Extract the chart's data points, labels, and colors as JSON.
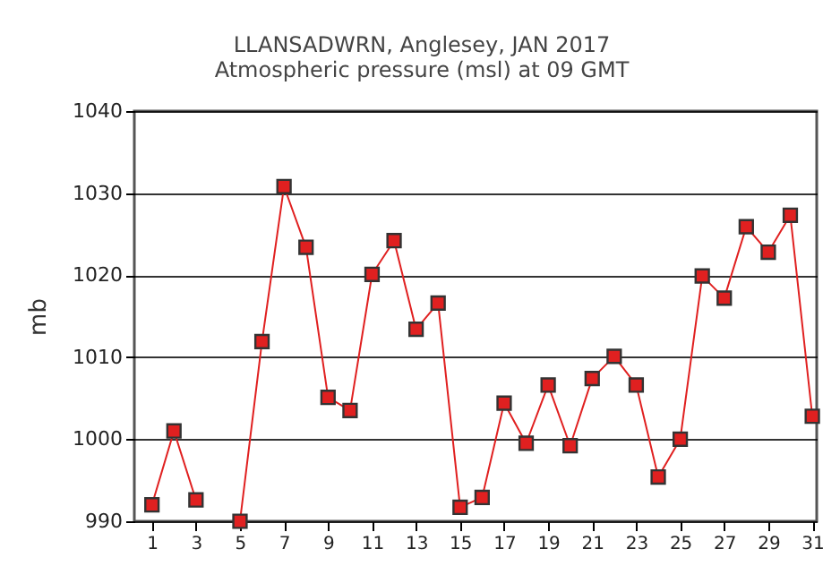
{
  "chart_data": {
    "type": "line",
    "title": "LLANSADWRN, Anglesey,  JAN 2017",
    "subtitle": "Atmospheric pressure  (msl) at 09 GMT",
    "ylabel": "mb",
    "x": [
      1,
      2,
      3,
      4,
      5,
      6,
      7,
      8,
      9,
      10,
      11,
      12,
      13,
      14,
      15,
      16,
      17,
      18,
      19,
      20,
      21,
      22,
      23,
      24,
      25,
      26,
      27,
      28,
      29,
      30,
      31
    ],
    "series": [
      {
        "color": "#e02020",
        "values": [
          992.0,
          1001.0,
          992.6,
          null,
          990.0,
          1011.9,
          1030.8,
          1023.4,
          1005.1,
          1003.5,
          1020.1,
          1024.2,
          1013.4,
          1016.6,
          991.7,
          992.9,
          1004.4,
          999.5,
          1006.6,
          999.2,
          1007.4,
          1010.1,
          1006.6,
          995.4,
          1000.0,
          1019.9,
          1017.2,
          1025.9,
          1022.8,
          1027.3,
          1002.8
        ]
      }
    ],
    "xlim": [
      0.2,
      31.2
    ],
    "xticks": [
      1,
      3,
      5,
      7,
      9,
      11,
      13,
      15,
      17,
      19,
      21,
      23,
      25,
      27,
      29,
      31
    ],
    "ylim": [
      990,
      1040
    ],
    "yticks": [
      990,
      1000,
      1010,
      1020,
      1030,
      1040
    ],
    "grid": "y",
    "marker": "square",
    "line_style": "solid"
  }
}
